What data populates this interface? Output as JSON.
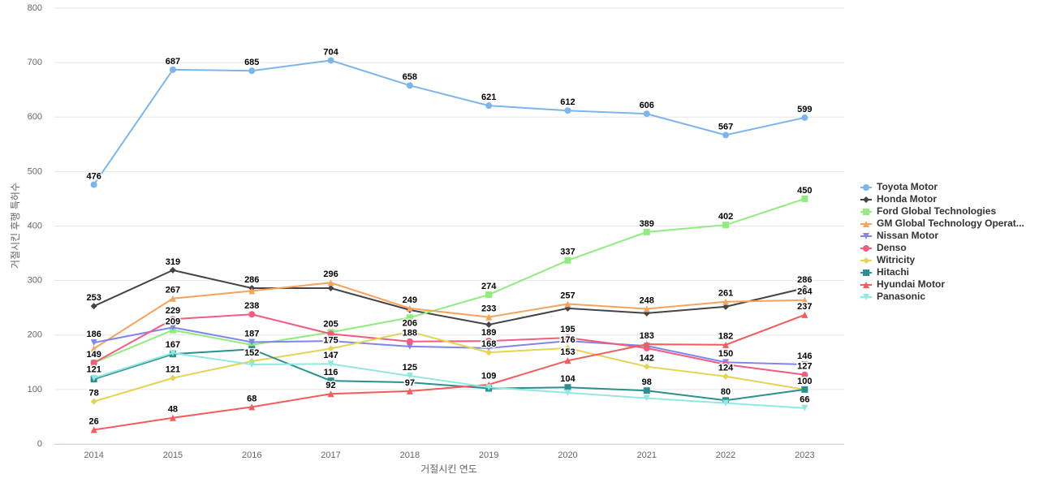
{
  "chart_data": {
    "type": "line",
    "x_label": "거절시킨 연도",
    "y_label": "거절시킨 후행 특허수",
    "categories": [
      "2014",
      "2015",
      "2016",
      "2017",
      "2018",
      "2019",
      "2020",
      "2021",
      "2022",
      "2023"
    ],
    "ylim": [
      0,
      800
    ],
    "yticks": [
      0,
      100,
      200,
      300,
      400,
      500,
      600,
      700,
      800
    ],
    "grid": true,
    "legend": "right",
    "series": [
      {
        "name": "Toyota Motor",
        "color": "#7cb5ec",
        "marker": "circle",
        "values": [
          476,
          687,
          685,
          704,
          658,
          621,
          612,
          606,
          567,
          599
        ]
      },
      {
        "name": "Honda Motor",
        "color": "#434348",
        "marker": "diamond",
        "values": [
          253,
          319,
          286,
          286,
          246,
          219,
          249,
          240,
          252,
          286
        ]
      },
      {
        "name": "Ford Global Technologies",
        "color": "#90ed7d",
        "marker": "square",
        "values": [
          149,
          209,
          182,
          205,
          232,
          274,
          337,
          389,
          402,
          450
        ]
      },
      {
        "name": "GM Global Technology Operat...",
        "color": "#f7a35c",
        "marker": "triangle",
        "values": [
          175,
          267,
          281,
          296,
          249,
          233,
          257,
          248,
          261,
          264
        ]
      },
      {
        "name": "Nissan Motor",
        "color": "#8085e9",
        "marker": "triangle-down",
        "values": [
          186,
          214,
          187,
          189,
          179,
          176,
          189,
          180,
          150,
          146
        ]
      },
      {
        "name": "Denso",
        "color": "#f15c80",
        "marker": "circle",
        "values": [
          149,
          229,
          238,
          202,
          188,
          189,
          195,
          176,
          146,
          127
        ]
      },
      {
        "name": "Witricity",
        "color": "#e4d354",
        "marker": "diamond",
        "values": [
          78,
          121,
          152,
          175,
          206,
          168,
          176,
          142,
          124,
          100
        ]
      },
      {
        "name": "Hitachi",
        "color": "#2b908f",
        "marker": "square",
        "values": [
          119,
          165,
          174,
          116,
          113,
          102,
          104,
          98,
          80,
          100
        ]
      },
      {
        "name": "Hyundai Motor",
        "color": "#f45b5b",
        "marker": "triangle",
        "values": [
          26,
          48,
          68,
          92,
          97,
          109,
          153,
          183,
          182,
          237
        ]
      },
      {
        "name": "Panasonic",
        "color": "#91e8e1",
        "marker": "triangle-down",
        "values": [
          121,
          167,
          146,
          147,
          125,
          104,
          94,
          84,
          75,
          66
        ]
      }
    ]
  }
}
